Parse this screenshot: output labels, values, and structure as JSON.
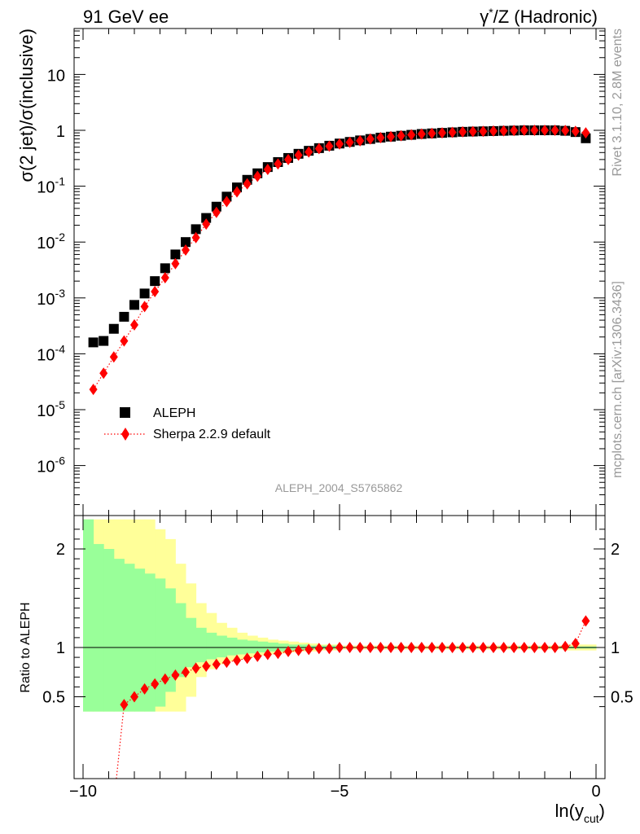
{
  "header": {
    "left": "91 GeV ee",
    "right_prefix": "γ",
    "right_suffix": "/Z (Hadronic)"
  },
  "side": {
    "rivet": "Rivet 3.1.10,  2.8M events",
    "mcplots": "mcplots.cern.ch [arXiv:1306.3436]"
  },
  "analysis_label": "ALEPH_2004_S5765862",
  "chart_data": [
    {
      "type": "scatter",
      "ylabel": "σ(2 jet)/σ(inclusive)",
      "yscale": "log",
      "xlim": [
        -10.0,
        0.0
      ],
      "ylim": [
        2e-07,
        60
      ],
      "yticks": [
        {
          "base": "10",
          "exp": "-6",
          "value": 1e-06
        },
        {
          "base": "10",
          "exp": "-5",
          "value": 1e-05
        },
        {
          "base": "10",
          "exp": "-4",
          "value": 0.0001
        },
        {
          "base": "10",
          "exp": "-3",
          "value": 0.001
        },
        {
          "base": "10",
          "exp": "-2",
          "value": 0.01
        },
        {
          "base": "10",
          "exp": "-1",
          "value": 0.1
        },
        {
          "base": "1",
          "exp": "",
          "value": 1
        },
        {
          "base": "10",
          "exp": "",
          "value": 10
        }
      ],
      "legend_position": "bottom-left",
      "series": [
        {
          "name": "ALEPH",
          "color": "#000000",
          "marker": "square",
          "x": [
            -9.8,
            -9.6,
            -9.4,
            -9.2,
            -9.0,
            -8.8,
            -8.6,
            -8.4,
            -8.2,
            -8.0,
            -7.8,
            -7.6,
            -7.4,
            -7.2,
            -7.0,
            -6.8,
            -6.6,
            -6.4,
            -6.2,
            -6.0,
            -5.8,
            -5.6,
            -5.4,
            -5.2,
            -5.0,
            -4.8,
            -4.6,
            -4.4,
            -4.2,
            -4.0,
            -3.8,
            -3.6,
            -3.4,
            -3.2,
            -3.0,
            -2.8,
            -2.6,
            -2.4,
            -2.2,
            -2.0,
            -1.8,
            -1.6,
            -1.4,
            -1.2,
            -1.0,
            -0.8,
            -0.6,
            -0.4,
            -0.2
          ],
          "y": [
            0.00016,
            0.00017,
            0.00028,
            0.00046,
            0.00075,
            0.0012,
            0.002,
            0.0034,
            0.006,
            0.01,
            0.017,
            0.027,
            0.043,
            0.065,
            0.095,
            0.13,
            0.17,
            0.22,
            0.27,
            0.32,
            0.38,
            0.43,
            0.48,
            0.53,
            0.58,
            0.62,
            0.66,
            0.7,
            0.74,
            0.77,
            0.8,
            0.83,
            0.86,
            0.88,
            0.9,
            0.92,
            0.94,
            0.95,
            0.96,
            0.97,
            0.98,
            0.99,
            1.0,
            1.0,
            1.0,
            1.0,
            0.98,
            0.93,
            0.72
          ]
        },
        {
          "name": "Sherpa 2.2.9 default",
          "color": "#ff0000",
          "marker": "diamond",
          "line": "dotted",
          "x": [
            -9.8,
            -9.6,
            -9.4,
            -9.2,
            -9.0,
            -8.8,
            -8.6,
            -8.4,
            -8.2,
            -8.0,
            -7.8,
            -7.6,
            -7.4,
            -7.2,
            -7.0,
            -6.8,
            -6.6,
            -6.4,
            -6.2,
            -6.0,
            -5.8,
            -5.6,
            -5.4,
            -5.2,
            -5.0,
            -4.8,
            -4.6,
            -4.4,
            -4.2,
            -4.0,
            -3.8,
            -3.6,
            -3.4,
            -3.2,
            -3.0,
            -2.8,
            -2.6,
            -2.4,
            -2.2,
            -2.0,
            -1.8,
            -1.6,
            -1.4,
            -1.2,
            -1.0,
            -0.8,
            -0.6,
            -0.4,
            -0.2
          ],
          "y": [
            2.3e-05,
            4.5e-05,
            8.8e-05,
            0.00017,
            0.00033,
            0.0007,
            0.0013,
            0.0023,
            0.0041,
            0.0072,
            0.012,
            0.021,
            0.034,
            0.053,
            0.079,
            0.11,
            0.15,
            0.2,
            0.25,
            0.3,
            0.36,
            0.41,
            0.47,
            0.52,
            0.57,
            0.61,
            0.65,
            0.7,
            0.74,
            0.77,
            0.8,
            0.83,
            0.86,
            0.88,
            0.9,
            0.92,
            0.94,
            0.95,
            0.96,
            0.97,
            0.98,
            0.99,
            1.0,
            1.0,
            1.0,
            1.0,
            0.99,
            0.96,
            0.9
          ]
        }
      ]
    },
    {
      "type": "scatter",
      "ylabel": "Ratio to ALEPH",
      "xlabel_main": "ln(y",
      "xlabel_sub": "cut",
      "xlabel_close": ")",
      "xlim": [
        -10.0,
        0.0
      ],
      "ylim": [
        0.35,
        2.3
      ],
      "xticks": [
        {
          "label": "−10",
          "value": -10
        },
        {
          "label": "−5",
          "value": -5
        },
        {
          "label": "0",
          "value": 0
        }
      ],
      "yticks": [
        {
          "label": "0.5",
          "value": 0.5
        },
        {
          "label": "1",
          "value": 1
        },
        {
          "label": "2",
          "value": 2
        }
      ],
      "bands": {
        "bin_edges": [
          -10.0,
          -9.8,
          -9.6,
          -9.4,
          -9.2,
          -9.0,
          -8.8,
          -8.6,
          -8.4,
          -8.2,
          -8.0,
          -7.8,
          -7.6,
          -7.4,
          -7.2,
          -7.0,
          -6.8,
          -6.6,
          -6.4,
          -6.2,
          -6.0,
          -5.8,
          -5.6,
          -5.4,
          -5.2,
          -5.0,
          -4.8,
          -4.6,
          -4.4,
          -4.2,
          -4.0,
          -3.8,
          -3.6,
          -3.4,
          -3.2,
          -3.0,
          -2.8,
          -2.6,
          -2.4,
          -2.2,
          -2.0,
          -1.8,
          -1.6,
          -1.4,
          -1.2,
          -1.0,
          -0.8,
          -0.6,
          -0.4,
          -0.2,
          0.0
        ],
        "stat_color": "#99ff99",
        "total_color": "#ffff99",
        "stat_up": [
          2.3,
          2.05,
          2.0,
          1.9,
          1.85,
          1.8,
          1.75,
          1.7,
          1.6,
          1.45,
          1.3,
          1.2,
          1.15,
          1.12,
          1.1,
          1.08,
          1.07,
          1.06,
          1.05,
          1.04,
          1.03,
          1.03,
          1.02,
          1.02,
          1.02,
          1.01,
          1.01,
          1.01,
          1.01,
          1.01,
          1.01,
          1.01,
          1.01,
          1.01,
          1.01,
          1.01,
          1.01,
          1.01,
          1.01,
          1.01,
          1.01,
          1.01,
          1.01,
          1.01,
          1.01,
          1.01,
          1.01,
          1.01,
          1.01,
          1.01
        ],
        "stat_down": [
          0.35,
          0.35,
          0.35,
          0.35,
          0.35,
          0.35,
          0.35,
          0.4,
          0.55,
          0.7,
          0.8,
          0.85,
          0.88,
          0.9,
          0.92,
          0.93,
          0.94,
          0.95,
          0.96,
          0.96,
          0.97,
          0.97,
          0.98,
          0.98,
          0.98,
          0.99,
          0.99,
          0.99,
          0.99,
          0.99,
          0.99,
          0.99,
          0.99,
          0.99,
          0.99,
          0.99,
          0.99,
          0.99,
          0.99,
          0.99,
          0.99,
          0.99,
          0.99,
          0.99,
          0.99,
          0.99,
          0.99,
          0.99,
          0.99,
          0.99
        ],
        "total_up": [
          2.3,
          2.3,
          2.3,
          2.3,
          2.3,
          2.3,
          2.3,
          2.2,
          2.1,
          1.85,
          1.65,
          1.45,
          1.35,
          1.25,
          1.2,
          1.15,
          1.12,
          1.1,
          1.08,
          1.07,
          1.06,
          1.05,
          1.04,
          1.03,
          1.03,
          1.02,
          1.02,
          1.02,
          1.02,
          1.02,
          1.02,
          1.02,
          1.02,
          1.02,
          1.02,
          1.02,
          1.02,
          1.02,
          1.02,
          1.02,
          1.02,
          1.02,
          1.02,
          1.02,
          1.02,
          1.02,
          1.02,
          1.03,
          1.03,
          1.03
        ],
        "total_down": [
          0.35,
          0.35,
          0.35,
          0.35,
          0.35,
          0.35,
          0.35,
          0.35,
          0.35,
          0.35,
          0.5,
          0.7,
          0.78,
          0.83,
          0.86,
          0.88,
          0.9,
          0.92,
          0.93,
          0.94,
          0.95,
          0.96,
          0.96,
          0.97,
          0.97,
          0.98,
          0.98,
          0.98,
          0.98,
          0.98,
          0.98,
          0.98,
          0.98,
          0.98,
          0.98,
          0.98,
          0.98,
          0.98,
          0.98,
          0.98,
          0.98,
          0.98,
          0.98,
          0.98,
          0.98,
          0.98,
          0.98,
          0.97,
          0.97,
          0.97
        ]
      },
      "series": [
        {
          "name": "Sherpa 2.2.9 default",
          "color": "#ff0000",
          "marker": "diamond",
          "line": "dotted",
          "x": [
            -9.2,
            -9.0,
            -8.8,
            -8.6,
            -8.4,
            -8.2,
            -8.0,
            -7.8,
            -7.6,
            -7.4,
            -7.2,
            -7.0,
            -6.8,
            -6.6,
            -6.4,
            -6.2,
            -6.0,
            -5.8,
            -5.6,
            -5.4,
            -5.2,
            -5.0,
            -4.8,
            -4.6,
            -4.4,
            -4.2,
            -4.0,
            -3.8,
            -3.6,
            -3.4,
            -3.2,
            -3.0,
            -2.8,
            -2.6,
            -2.4,
            -2.2,
            -2.0,
            -1.8,
            -1.6,
            -1.4,
            -1.2,
            -1.0,
            -0.8,
            -0.6,
            -0.4,
            -0.2
          ],
          "y": [
            0.42,
            0.5,
            0.58,
            0.63,
            0.68,
            0.72,
            0.75,
            0.79,
            0.81,
            0.83,
            0.85,
            0.87,
            0.89,
            0.91,
            0.93,
            0.94,
            0.96,
            0.97,
            0.98,
            0.99,
            0.99,
            1.0,
            1.0,
            1.0,
            1.0,
            1.0,
            1.0,
            1.0,
            1.0,
            1.0,
            1.0,
            1.0,
            1.0,
            1.0,
            1.0,
            1.0,
            1.0,
            1.0,
            1.0,
            1.0,
            1.0,
            1.0,
            1.0,
            1.01,
            1.04,
            1.27
          ]
        }
      ]
    }
  ]
}
